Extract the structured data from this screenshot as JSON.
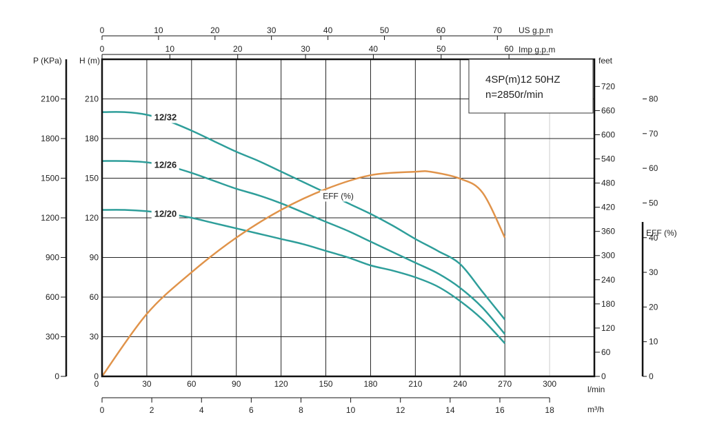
{
  "chart_data": {
    "type": "line",
    "info": {
      "model": "4SP(m)12  50HZ",
      "speed": "n=2850r/min"
    },
    "x_axis": {
      "unit": "l/min",
      "range": [
        0,
        300
      ],
      "ticks": [
        0,
        30,
        60,
        90,
        120,
        150,
        180,
        210,
        240,
        270,
        300
      ]
    },
    "x_m3h": {
      "unit": "m³/h",
      "ticks": [
        0,
        2,
        4,
        6,
        8,
        10,
        12,
        14,
        16,
        18
      ]
    },
    "x_us": {
      "unit": "US g.p.m",
      "ticks": [
        0,
        10,
        20,
        30,
        40,
        50,
        60,
        70
      ]
    },
    "x_imp": {
      "unit": "Imp g.p.m",
      "ticks": [
        0,
        10,
        20,
        30,
        40,
        50,
        60
      ]
    },
    "y_head": {
      "unit": "H (m)",
      "range": [
        0,
        240
      ],
      "ticks": [
        0,
        30,
        60,
        90,
        120,
        150,
        180,
        210
      ]
    },
    "y_pressure": {
      "unit": "P (KPa)",
      "ticks": [
        0,
        300,
        600,
        900,
        1200,
        1500,
        1800,
        2100
      ]
    },
    "y_feet": {
      "unit": "feet",
      "ticks": [
        0,
        60,
        120,
        180,
        240,
        300,
        360,
        420,
        480,
        540,
        600,
        660,
        720
      ]
    },
    "y_eff": {
      "unit": "EFF (%)",
      "ticks": [
        0,
        10,
        20,
        30,
        40,
        50,
        60,
        70,
        80
      ]
    },
    "series": [
      {
        "name": "12/32",
        "color": "#2e9e9a",
        "x": [
          0,
          15,
          30,
          45,
          60,
          75,
          90,
          105,
          120,
          135,
          150,
          165,
          180,
          195,
          210,
          225,
          240,
          255,
          270
        ],
        "y": [
          200,
          200,
          198,
          193,
          186,
          178,
          170,
          163,
          155,
          147,
          139,
          131,
          123,
          114,
          104,
          95,
          85,
          64,
          43
        ]
      },
      {
        "name": "12/26",
        "color": "#2e9e9a",
        "x": [
          0,
          15,
          30,
          45,
          60,
          75,
          90,
          105,
          120,
          135,
          150,
          165,
          180,
          195,
          210,
          225,
          240,
          255,
          270
        ],
        "y": [
          163,
          163,
          162,
          159,
          154,
          148,
          142,
          137,
          131,
          124,
          117,
          110,
          102,
          94,
          86,
          78,
          67,
          52,
          32
        ]
      },
      {
        "name": "12/20",
        "color": "#2e9e9a",
        "x": [
          0,
          15,
          30,
          45,
          60,
          75,
          90,
          105,
          120,
          135,
          150,
          165,
          180,
          195,
          210,
          225,
          240,
          255,
          270
        ],
        "y": [
          126,
          126,
          125,
          123,
          120,
          116,
          112,
          108,
          104,
          100,
          95,
          90,
          84,
          80,
          75,
          68,
          57,
          43,
          25
        ]
      },
      {
        "name": "EFF (%)",
        "color": "#e0934a",
        "axis": "eff",
        "x": [
          0,
          30,
          60,
          90,
          120,
          150,
          180,
          210,
          220,
          240,
          255,
          270
        ],
        "y": [
          0,
          18,
          30,
          40,
          48,
          54,
          58,
          59,
          59,
          57,
          53,
          40
        ]
      }
    ],
    "grid": true
  }
}
